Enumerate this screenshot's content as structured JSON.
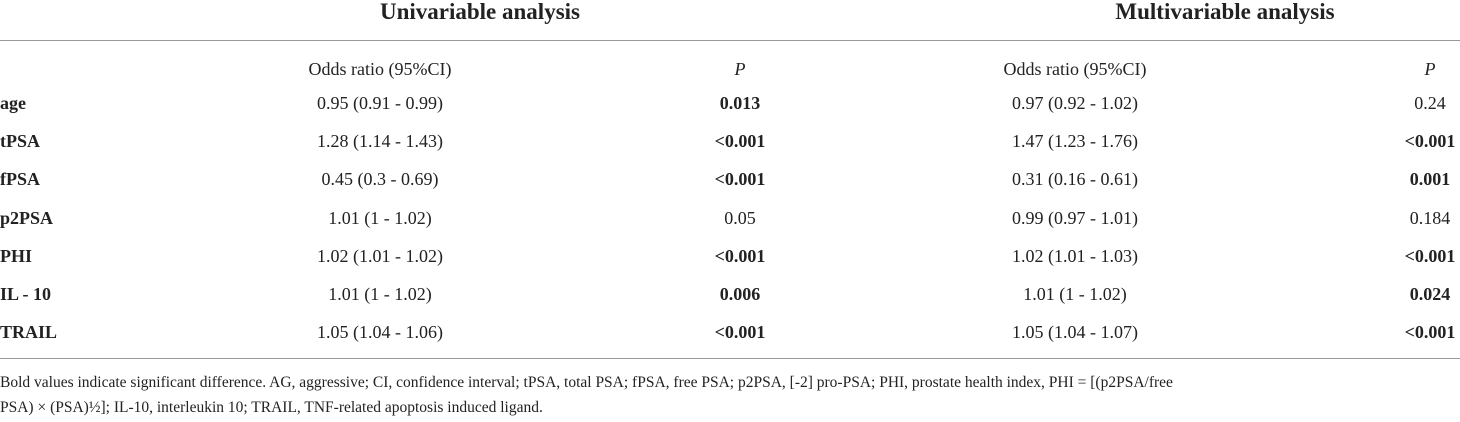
{
  "table": {
    "group_headers": [
      "Univariable analysis",
      "Multivariable analysis"
    ],
    "sub_headers": [
      "Odds ratio (95%CI)",
      "P",
      "Odds ratio (95%CI)",
      "P"
    ],
    "rows": [
      {
        "variable": "age",
        "uni_or": "0.95 (0.91 - 0.99)",
        "uni_p": {
          "text": "0.013",
          "bold": true
        },
        "multi_or": "0.97 (0.92 - 1.02)",
        "multi_p": {
          "text": "0.24",
          "bold": false
        }
      },
      {
        "variable": "tPSA",
        "uni_or": "1.28 (1.14 - 1.43)",
        "uni_p": {
          "text": "<0.001",
          "bold": true
        },
        "multi_or": "1.47 (1.23 - 1.76)",
        "multi_p": {
          "text": "<0.001",
          "bold": true
        }
      },
      {
        "variable": "fPSA",
        "uni_or": "0.45 (0.3 - 0.69)",
        "uni_p": {
          "text": "<0.001",
          "bold": true
        },
        "multi_or": "0.31 (0.16 - 0.61)",
        "multi_p": {
          "text": "0.001",
          "bold": true
        }
      },
      {
        "variable": "p2PSA",
        "uni_or": "1.01 (1 - 1.02)",
        "uni_p": {
          "text": "0.05",
          "bold": false
        },
        "multi_or": "0.99 (0.97 - 1.01)",
        "multi_p": {
          "text": "0.184",
          "bold": false
        }
      },
      {
        "variable": "PHI",
        "uni_or": "1.02 (1.01 - 1.02)",
        "uni_p": {
          "text": "<0.001",
          "bold": true
        },
        "multi_or": "1.02 (1.01 - 1.03)",
        "multi_p": {
          "text": "<0.001",
          "bold": true
        }
      },
      {
        "variable": "IL - 10",
        "uni_or": "1.01 (1 - 1.02)",
        "uni_p": {
          "text": "0.006",
          "bold": true
        },
        "multi_or": "1.01 (1 - 1.02)",
        "multi_p": {
          "text": "0.024",
          "bold": true
        }
      },
      {
        "variable": "TRAIL",
        "uni_or": "1.05 (1.04 - 1.06)",
        "uni_p": {
          "text": "<0.001",
          "bold": true
        },
        "multi_or": "1.05 (1.04 - 1.07)",
        "multi_p": {
          "text": "<0.001",
          "bold": true
        }
      }
    ],
    "footnote": [
      "Bold values indicate significant difference. AG, aggressive; CI, confidence interval; tPSA, total PSA; fPSA, free PSA; p2PSA, [-2] pro-PSA; PHI, prostate health index, PHI = [(p2PSA/free",
      "PSA) × (PSA)½]; IL-10, interleukin 10; TRAIL, TNF-related apoptosis induced ligand."
    ]
  }
}
